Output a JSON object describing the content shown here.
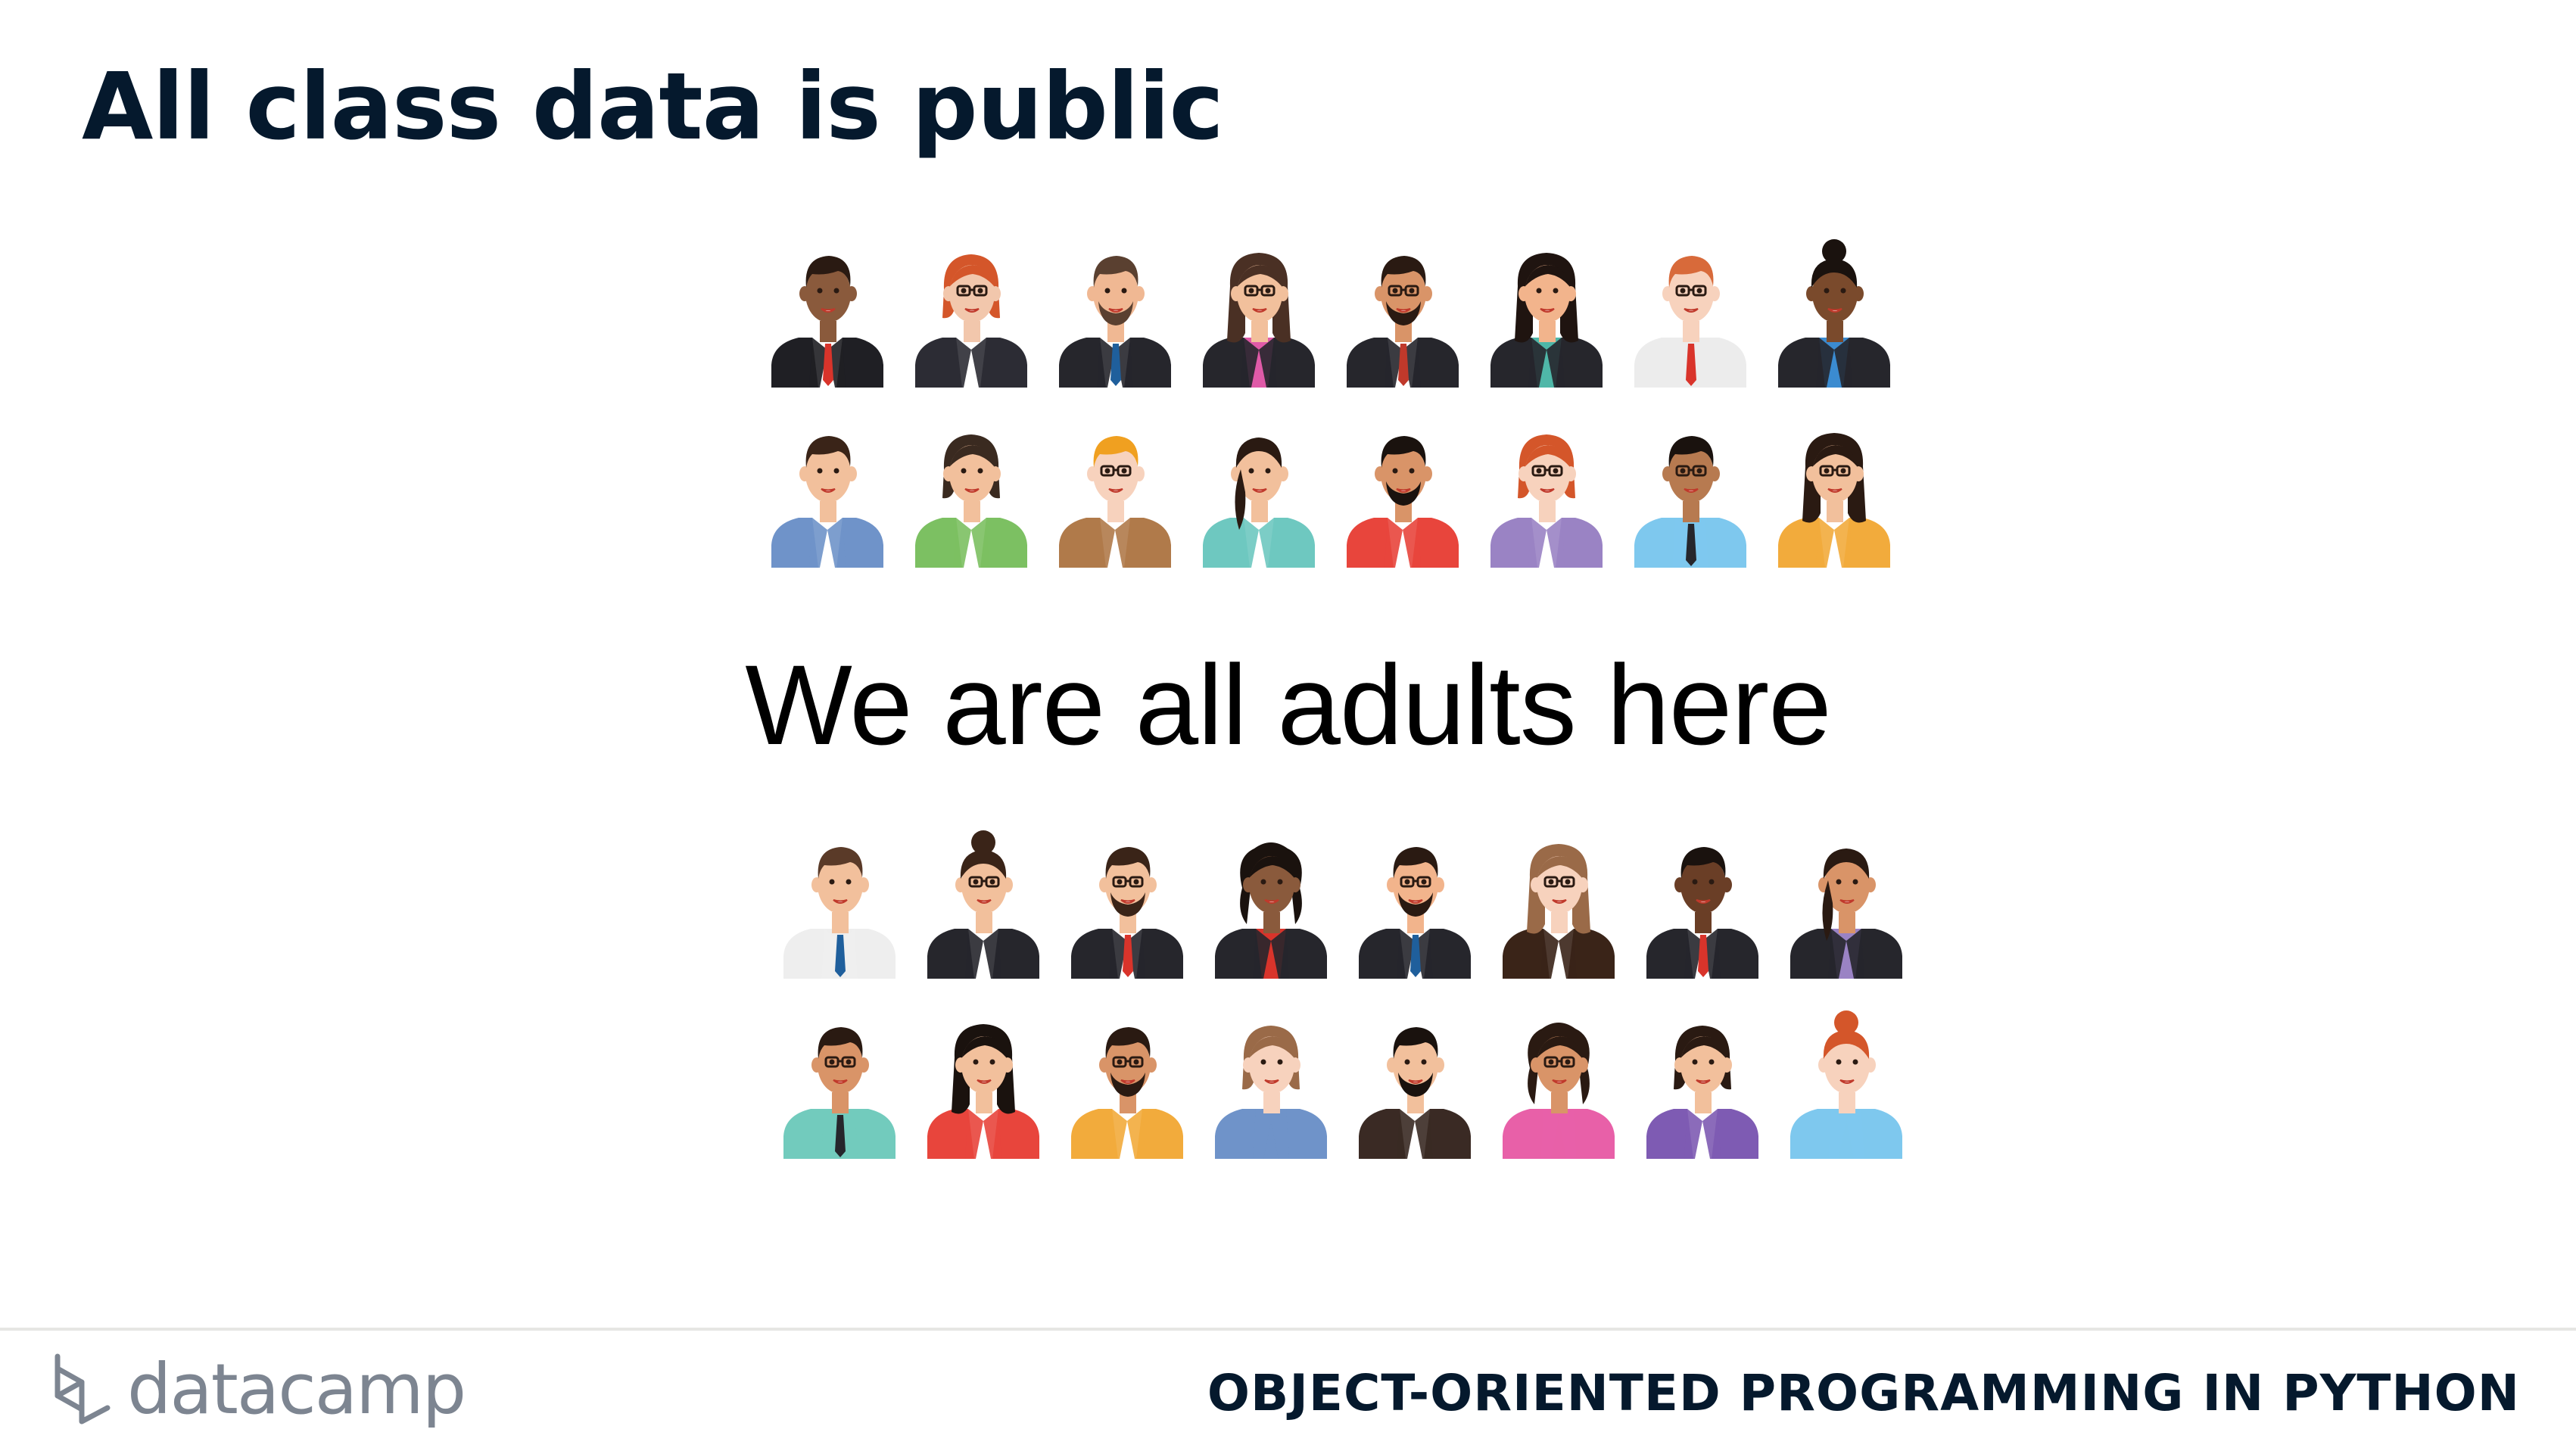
{
  "slide": {
    "title": "All class data is public",
    "slogan": "We are all adults here"
  },
  "avatars": {
    "top_rows": [
      [
        {
          "skin": "#8a5a3c",
          "hair": "#2a1a12",
          "hairStyle": "short",
          "shirt": "#ffffff",
          "jacket": "#1f1f24",
          "tie": "#d9342b",
          "glasses": false,
          "beard": false
        },
        {
          "skin": "#f2c7ac",
          "hair": "#d4562a",
          "hairStyle": "bob",
          "shirt": "#ffffff",
          "jacket": "#2c2c34",
          "tie": "",
          "glasses": true,
          "beard": false
        },
        {
          "skin": "#f0b893",
          "hair": "#5a4030",
          "hairStyle": "short",
          "shirt": "#ffffff",
          "jacket": "#26262c",
          "tie": "#1f5f9c",
          "glasses": false,
          "beard": true
        },
        {
          "skin": "#f2c09c",
          "hair": "#4a3024",
          "hairStyle": "long",
          "shirt": "#e05aa8",
          "jacket": "#26262c",
          "tie": "",
          "glasses": true,
          "beard": false
        },
        {
          "skin": "#d99468",
          "hair": "#2a1a12",
          "hairStyle": "short",
          "shirt": "#ffffff",
          "jacket": "#26262c",
          "tie": "#c0392b",
          "glasses": true,
          "beard": true
        },
        {
          "skin": "#f2b48c",
          "hair": "#1f1410",
          "hairStyle": "long",
          "shirt": "#4fb7a8",
          "jacket": "#26262c",
          "tie": "",
          "glasses": false,
          "beard": false
        },
        {
          "skin": "#f7d2bd",
          "hair": "#d86a3a",
          "hairStyle": "short",
          "shirt": "#ececec",
          "jacket": "#ececec",
          "tie": "#d9342b",
          "glasses": true,
          "beard": false
        },
        {
          "skin": "#7a4a2c",
          "hair": "#1a120e",
          "hairStyle": "bun",
          "shirt": "#3b8bd0",
          "jacket": "#26262c",
          "tie": "",
          "glasses": false,
          "beard": false
        }
      ],
      [
        {
          "skin": "#f2c09c",
          "hair": "#3a2418",
          "hairStyle": "short",
          "shirt": "#ffffff",
          "jacket": "#6f93c9",
          "tie": "",
          "glasses": false,
          "beard": false
        },
        {
          "skin": "#f2c09c",
          "hair": "#3a2a20",
          "hairStyle": "bob",
          "shirt": "#ffffff",
          "jacket": "#7cc062",
          "tie": "",
          "glasses": false,
          "beard": false
        },
        {
          "skin": "#f7d2bd",
          "hair": "#f0a020",
          "hairStyle": "short",
          "shirt": "#ffffff",
          "jacket": "#b07a4a",
          "tie": "",
          "glasses": true,
          "beard": false
        },
        {
          "skin": "#f2c09c",
          "hair": "#2a1a12",
          "hairStyle": "pony",
          "shirt": "#ffffff",
          "jacket": "#6ec8c0",
          "tie": "",
          "glasses": false,
          "beard": false
        },
        {
          "skin": "#d99468",
          "hair": "#1a120e",
          "hairStyle": "short",
          "shirt": "#ffffff",
          "jacket": "#e8453c",
          "tie": "",
          "glasses": false,
          "beard": true
        },
        {
          "skin": "#f7d2bd",
          "hair": "#d4562a",
          "hairStyle": "bob",
          "shirt": "#ffffff",
          "jacket": "#9a83c4",
          "tie": "",
          "glasses": true,
          "beard": false
        },
        {
          "skin": "#b77a50",
          "hair": "#1a120e",
          "hairStyle": "short",
          "shirt": "#7ec8ee",
          "jacket": "#7ec8ee",
          "tie": "#26262c",
          "glasses": true,
          "beard": false
        },
        {
          "skin": "#f2c09c",
          "hair": "#2a1a12",
          "hairStyle": "long",
          "shirt": "#ffffff",
          "jacket": "#f2ab3c",
          "tie": "",
          "glasses": true,
          "beard": false
        }
      ]
    ],
    "bottom_rows": [
      [
        {
          "skin": "#f2c09c",
          "hair": "#5a3a28",
          "hairStyle": "short",
          "shirt": "#eeeeee",
          "jacket": "#eeeeee",
          "tie": "#1f5f9c",
          "glasses": false,
          "beard": false
        },
        {
          "skin": "#f2c09c",
          "hair": "#3a2418",
          "hairStyle": "bun",
          "shirt": "#ffffff",
          "jacket": "#26262c",
          "tie": "",
          "glasses": true,
          "beard": false
        },
        {
          "skin": "#f2c09c",
          "hair": "#3a2418",
          "hairStyle": "short",
          "shirt": "#ffffff",
          "jacket": "#26262c",
          "tie": "#d9342b",
          "glasses": true,
          "beard": true
        },
        {
          "skin": "#8a5a3c",
          "hair": "#1a120e",
          "hairStyle": "curly",
          "shirt": "#d9342b",
          "jacket": "#26262c",
          "tie": "",
          "glasses": false,
          "beard": false
        },
        {
          "skin": "#f2b48c",
          "hair": "#2a1a12",
          "hairStyle": "short",
          "shirt": "#ffffff",
          "jacket": "#26262c",
          "tie": "#1f5f9c",
          "glasses": true,
          "beard": true
        },
        {
          "skin": "#f7d2bd",
          "hair": "#9a6a48",
          "hairStyle": "long",
          "shirt": "#ffffff",
          "jacket": "#3a2418",
          "tie": "",
          "glasses": true,
          "beard": false
        },
        {
          "skin": "#6a3e26",
          "hair": "#1a120e",
          "hairStyle": "short",
          "shirt": "#ffffff",
          "jacket": "#26262c",
          "tie": "#d9342b",
          "glasses": false,
          "beard": false
        },
        {
          "skin": "#d99468",
          "hair": "#2a1a12",
          "hairStyle": "pony",
          "shirt": "#9a83c4",
          "jacket": "#26262c",
          "tie": "",
          "glasses": false,
          "beard": false
        }
      ],
      [
        {
          "skin": "#d99468",
          "hair": "#2a1a12",
          "hairStyle": "short",
          "shirt": "#72cbbd",
          "jacket": "#72cbbd",
          "tie": "#26262c",
          "glasses": true,
          "beard": false
        },
        {
          "skin": "#f2c09c",
          "hair": "#1a120e",
          "hairStyle": "long",
          "shirt": "#ffffff",
          "jacket": "#e8453c",
          "tie": "",
          "glasses": false,
          "beard": false
        },
        {
          "skin": "#d99468",
          "hair": "#2a1a12",
          "hairStyle": "short",
          "shirt": "#ffffff",
          "jacket": "#f2ab3c",
          "tie": "",
          "glasses": true,
          "beard": true
        },
        {
          "skin": "#f7d2bd",
          "hair": "#9a6a48",
          "hairStyle": "bob",
          "shirt": "#6f93c9",
          "jacket": "#6f93c9",
          "tie": "",
          "glasses": false,
          "beard": false
        },
        {
          "skin": "#f2c09c",
          "hair": "#1a120e",
          "hairStyle": "short",
          "shirt": "#ffffff",
          "jacket": "#3a2a24",
          "tie": "",
          "glasses": false,
          "beard": true
        },
        {
          "skin": "#d99468",
          "hair": "#2a1a12",
          "hairStyle": "curly",
          "shirt": "#e860a8",
          "jacket": "#e860a8",
          "tie": "",
          "glasses": true,
          "beard": false
        },
        {
          "skin": "#f2c09c",
          "hair": "#2a1a12",
          "hairStyle": "bob",
          "shirt": "#ffffff",
          "jacket": "#7e5bb3",
          "tie": "",
          "glasses": false,
          "beard": false
        },
        {
          "skin": "#f7d2bd",
          "hair": "#d4562a",
          "hairStyle": "bun",
          "shirt": "#7ec8ee",
          "jacket": "#7ec8ee",
          "tie": "",
          "glasses": false,
          "beard": false
        }
      ]
    ]
  },
  "footer": {
    "brand": "datacamp",
    "brand_icon": "datacamp-logo-icon",
    "course": "OBJECT-ORIENTED PROGRAMMING IN PYTHON"
  }
}
